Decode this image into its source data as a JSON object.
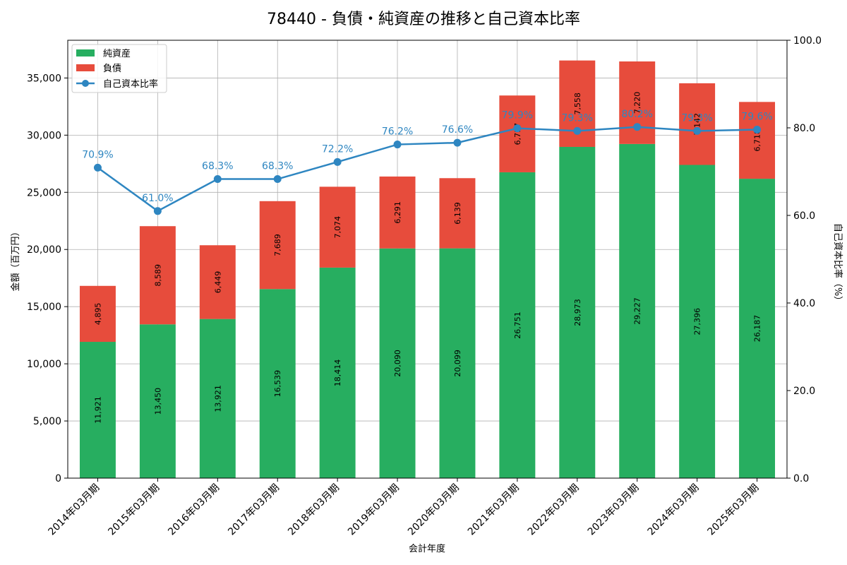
{
  "chart_data": {
    "type": "bar",
    "title": "78440 - 負債・純資産の推移と自己資本比率",
    "xlabel": "会計年度",
    "ylabel": "金額（百万円）",
    "y2label": "自己資本比率（%）",
    "categories": [
      "2014年03月期",
      "2015年03月期",
      "2016年03月期",
      "2017年03月期",
      "2018年03月期",
      "2019年03月期",
      "2020年03月期",
      "2021年03月期",
      "2022年03月期",
      "2023年03月期",
      "2024年03月期",
      "2025年03月期"
    ],
    "series": [
      {
        "name": "純資産",
        "kind": "bar-stacked",
        "color": "#27ae60",
        "values": [
          11921,
          13450,
          13921,
          16539,
          18414,
          20090,
          20099,
          26751,
          28973,
          29227,
          27396,
          26187
        ]
      },
      {
        "name": "負債",
        "kind": "bar-stacked",
        "color": "#e74c3c",
        "values": [
          4895,
          8589,
          6449,
          7689,
          7074,
          6291,
          6139,
          6717,
          7558,
          7220,
          7142,
          6718
        ]
      },
      {
        "name": "自己資本比率",
        "kind": "line",
        "axis": "right",
        "color": "#2e86c1",
        "values": [
          70.9,
          61.0,
          68.3,
          68.3,
          72.2,
          76.2,
          76.6,
          79.9,
          79.3,
          80.2,
          79.3,
          79.6
        ]
      }
    ],
    "bar_label_text": [
      "11,921",
      "13,450",
      "13,921",
      "16,539",
      "18,414",
      "20,090",
      "20,099",
      "26,751",
      "28,973",
      "29,227",
      "27,396",
      "26,187"
    ],
    "liability_label_text": [
      "4,895",
      "8,589",
      "6,449",
      "7,689",
      "7,074",
      "6,291",
      "6,139",
      "6,717",
      "7,558",
      "7,220",
      "7,142",
      "6,718"
    ],
    "ratio_label_text": [
      "70.9%",
      "61.0%",
      "68.3%",
      "68.3%",
      "72.2%",
      "76.2%",
      "76.6%",
      "79.9%",
      "79.3%",
      "80.2%",
      "79.3%",
      "79.6%"
    ],
    "ylim": [
      0,
      38300
    ],
    "yticks": [
      0,
      5000,
      10000,
      15000,
      20000,
      25000,
      30000,
      35000
    ],
    "ytick_labels": [
      "0",
      "5,000",
      "10,000",
      "15,000",
      "20,000",
      "25,000",
      "30,000",
      "35,000"
    ],
    "y2lim": [
      0,
      100
    ],
    "y2ticks": [
      0,
      20,
      40,
      60,
      80,
      100
    ],
    "y2tick_labels": [
      "0.0",
      "20.0",
      "40.0",
      "60.0",
      "80.0",
      "100.0"
    ],
    "grid": true,
    "legend_placement": "top-left"
  }
}
